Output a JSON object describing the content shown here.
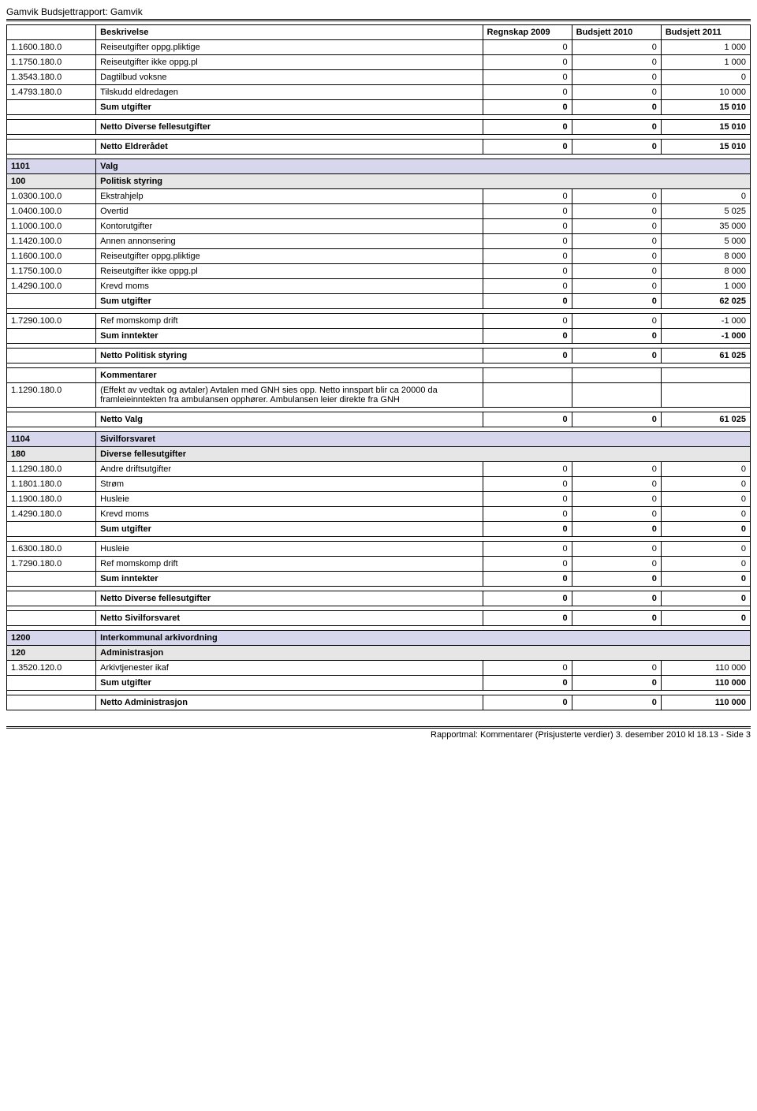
{
  "pageTitle": "Gamvik Budsjettrapport: Gamvik",
  "headers": {
    "beskrivelse": "Beskrivelse",
    "regnskap": "Regnskap 2009",
    "budsjett2010": "Budsjett 2010",
    "budsjett2011": "Budsjett 2011"
  },
  "topRows": [
    {
      "code": "1.1600.180.0",
      "desc": "Reiseutgifter oppg.pliktige",
      "v1": "0",
      "v2": "0",
      "v3": "1 000"
    },
    {
      "code": "1.1750.180.0",
      "desc": "Reiseutgifter ikke oppg.pl",
      "v1": "0",
      "v2": "0",
      "v3": "1 000"
    },
    {
      "code": "1.3543.180.0",
      "desc": "Dagtilbud voksne",
      "v1": "0",
      "v2": "0",
      "v3": "0"
    },
    {
      "code": "1.4793.180.0",
      "desc": "Tilskudd eldredagen",
      "v1": "0",
      "v2": "0",
      "v3": "10 000"
    }
  ],
  "topSum": {
    "label": "Sum utgifter",
    "v1": "0",
    "v2": "0",
    "v3": "15 010"
  },
  "topNetto1": {
    "label": "Netto Diverse fellesutgifter",
    "v1": "0",
    "v2": "0",
    "v3": "15 010"
  },
  "topNetto2": {
    "label": "Netto Eldrerådet",
    "v1": "0",
    "v2": "0",
    "v3": "15 010"
  },
  "sec1101": {
    "code": "1101",
    "label": "Valg"
  },
  "sub100": {
    "code": "100",
    "label": "Politisk styring"
  },
  "rows100": [
    {
      "code": "1.0300.100.0",
      "desc": "Ekstrahjelp",
      "v1": "0",
      "v2": "0",
      "v3": "0"
    },
    {
      "code": "1.0400.100.0",
      "desc": "Overtid",
      "v1": "0",
      "v2": "0",
      "v3": "5 025"
    },
    {
      "code": "1.1000.100.0",
      "desc": "Kontorutgifter",
      "v1": "0",
      "v2": "0",
      "v3": "35 000"
    },
    {
      "code": "1.1420.100.0",
      "desc": "Annen annonsering",
      "v1": "0",
      "v2": "0",
      "v3": "5 000"
    },
    {
      "code": "1.1600.100.0",
      "desc": "Reiseutgifter oppg.pliktige",
      "v1": "0",
      "v2": "0",
      "v3": "8 000"
    },
    {
      "code": "1.1750.100.0",
      "desc": "Reiseutgifter ikke oppg.pl",
      "v1": "0",
      "v2": "0",
      "v3": "8 000"
    },
    {
      "code": "1.4290.100.0",
      "desc": "Krevd moms",
      "v1": "0",
      "v2": "0",
      "v3": "1 000"
    }
  ],
  "sum100": {
    "label": "Sum utgifter",
    "v1": "0",
    "v2": "0",
    "v3": "62 025"
  },
  "rows100b": [
    {
      "code": "1.7290.100.0",
      "desc": "Ref momskomp drift",
      "v1": "0",
      "v2": "0",
      "v3": "-1 000"
    }
  ],
  "sum100b": {
    "label": "Sum inntekter",
    "v1": "0",
    "v2": "0",
    "v3": "-1 000"
  },
  "netto100": {
    "label": "Netto Politisk styring",
    "v1": "0",
    "v2": "0",
    "v3": "61 025"
  },
  "kommentarHeader": "Kommentarer",
  "kommentarRow": {
    "code": "1.1290.180.0",
    "desc": "(Effekt av vedtak og avtaler) Avtalen med GNH sies opp. Netto innspart blir ca 20000 da framleieinntekten fra ambulansen opphører. Ambulansen leier direkte fra GNH"
  },
  "nettoValg": {
    "label": "Netto Valg",
    "v1": "0",
    "v2": "0",
    "v3": "61 025"
  },
  "sec1104": {
    "code": "1104",
    "label": "Sivilforsvaret"
  },
  "sub180": {
    "code": "180",
    "label": "Diverse fellesutgifter"
  },
  "rows180": [
    {
      "code": "1.1290.180.0",
      "desc": "Andre driftsutgifter",
      "v1": "0",
      "v2": "0",
      "v3": "0"
    },
    {
      "code": "1.1801.180.0",
      "desc": "Strøm",
      "v1": "0",
      "v2": "0",
      "v3": "0"
    },
    {
      "code": "1.1900.180.0",
      "desc": "Husleie",
      "v1": "0",
      "v2": "0",
      "v3": "0"
    },
    {
      "code": "1.4290.180.0",
      "desc": "Krevd moms",
      "v1": "0",
      "v2": "0",
      "v3": "0"
    }
  ],
  "sum180": {
    "label": "Sum utgifter",
    "v1": "0",
    "v2": "0",
    "v3": "0"
  },
  "rows180b": [
    {
      "code": "1.6300.180.0",
      "desc": "Husleie",
      "v1": "0",
      "v2": "0",
      "v3": "0"
    },
    {
      "code": "1.7290.180.0",
      "desc": "Ref momskomp drift",
      "v1": "0",
      "v2": "0",
      "v3": "0"
    }
  ],
  "sum180b": {
    "label": "Sum inntekter",
    "v1": "0",
    "v2": "0",
    "v3": "0"
  },
  "netto180": {
    "label": "Netto Diverse fellesutgifter",
    "v1": "0",
    "v2": "0",
    "v3": "0"
  },
  "nettoSivil": {
    "label": "Netto Sivilforsvaret",
    "v1": "0",
    "v2": "0",
    "v3": "0"
  },
  "sec1200": {
    "code": "1200",
    "label": "Interkommunal arkivordning"
  },
  "sub120": {
    "code": "120",
    "label": "Administrasjon"
  },
  "rows120": [
    {
      "code": "1.3520.120.0",
      "desc": "Arkivtjenester ikaf",
      "v1": "0",
      "v2": "0",
      "v3": "110 000"
    }
  ],
  "sum120": {
    "label": "Sum utgifter",
    "v1": "0",
    "v2": "0",
    "v3": "110 000"
  },
  "netto120": {
    "label": "Netto Administrasjon",
    "v1": "0",
    "v2": "0",
    "v3": "110 000"
  },
  "footer": "Rapportmal: Kommentarer  (Prisjusterte verdier) 3. desember 2010 kl 18.13 - Side 3",
  "style": {
    "sectionBg": "#d6d6ec",
    "subBg": "#e6e6e6"
  }
}
